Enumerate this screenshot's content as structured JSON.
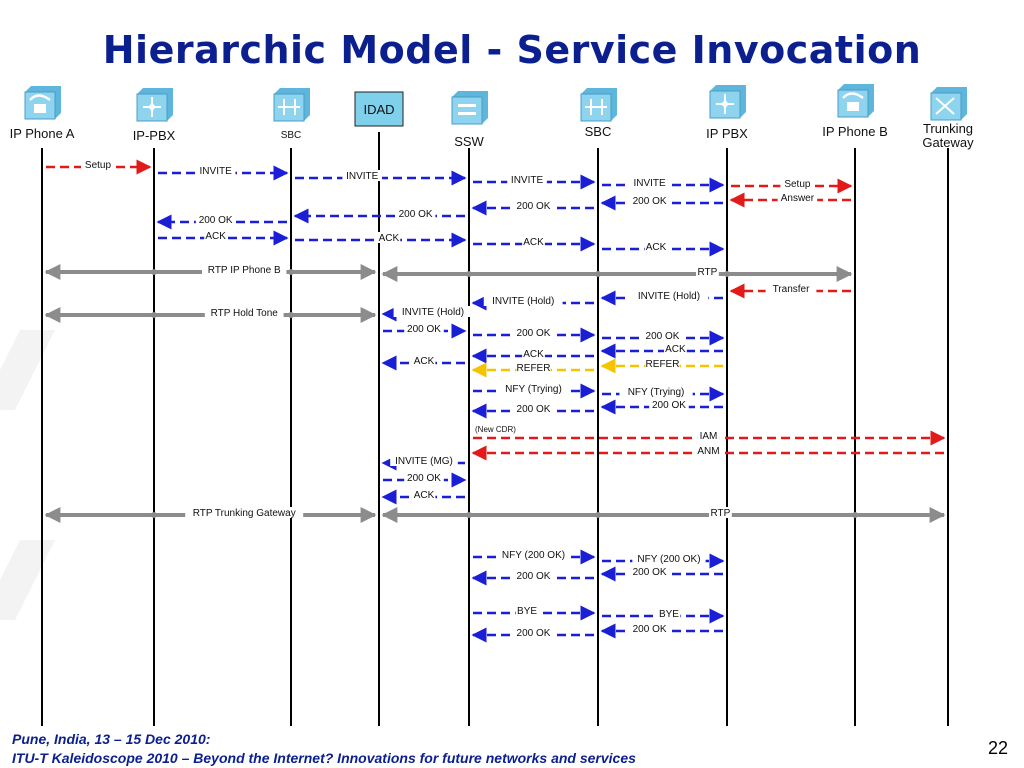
{
  "title": "Hierarchic Model - Service Invocation",
  "footer": {
    "line1": "Pune, India, 13 – 15 Dec 2010:",
    "line2": "ITU-T Kaleidoscope 2010 – Beyond the Internet? Innovations for future networks and services"
  },
  "page_number": "22",
  "colors": {
    "title": "#0b1f8f",
    "blue": "#1a1fd6",
    "red": "#e21a1a",
    "yellow": "#f5c400",
    "gray": "#8c8c8c",
    "idad": "#7fd0ea"
  },
  "entities": [
    {
      "name": "ip-phone-a",
      "label": "IP Phone A",
      "icon": "ip-phone-icon"
    },
    {
      "name": "ip-pbx-left",
      "label": "IP-PBX",
      "icon": "pbx-icon"
    },
    {
      "name": "sbc-left",
      "label": "SBC",
      "icon": "sbc-icon"
    },
    {
      "name": "idad",
      "label": "IDAD",
      "icon": "idad-box"
    },
    {
      "name": "ssw",
      "label": "SSW",
      "icon": "ssw-icon"
    },
    {
      "name": "sbc-right",
      "label": "SBC",
      "icon": "sbc-icon"
    },
    {
      "name": "ip-pbx-right",
      "label": "IP PBX",
      "icon": "pbx-icon"
    },
    {
      "name": "ip-phone-b",
      "label": "IP Phone B",
      "icon": "ip-phone-icon"
    },
    {
      "name": "trunking-gateway",
      "label": "Trunking Gateway",
      "icon": "gateway-icon"
    }
  ],
  "messages": [
    {
      "label": "Setup",
      "color": "red",
      "from": 0,
      "to": 1
    },
    {
      "label": "INVITE",
      "color": "blue",
      "from": 1,
      "to": 2
    },
    {
      "label": "INVITE",
      "color": "blue",
      "from": 2,
      "to": 4
    },
    {
      "label": "INVITE",
      "color": "blue",
      "from": 4,
      "to": 5
    },
    {
      "label": "INVITE",
      "color": "blue",
      "from": 5,
      "to": 6
    },
    {
      "label": "Setup",
      "color": "red",
      "from": 6,
      "to": 7
    },
    {
      "label": "Answer",
      "color": "red",
      "from": 7,
      "to": 6
    },
    {
      "label": "200 OK",
      "color": "blue",
      "from": 6,
      "to": 5
    },
    {
      "label": "200 OK",
      "color": "blue",
      "from": 5,
      "to": 4
    },
    {
      "label": "200 OK",
      "color": "blue",
      "from": 4,
      "to": 2
    },
    {
      "label": "200 OK",
      "color": "blue",
      "from": 2,
      "to": 1
    },
    {
      "label": "ACK",
      "color": "blue",
      "from": 1,
      "to": 2
    },
    {
      "label": "ACK",
      "color": "blue",
      "from": 2,
      "to": 4
    },
    {
      "label": "ACK",
      "color": "blue",
      "from": 4,
      "to": 5
    },
    {
      "label": "ACK",
      "color": "blue",
      "from": 5,
      "to": 6
    },
    {
      "label": "RTP IP Phone B",
      "color": "gray",
      "from": 0,
      "to": 3
    },
    {
      "label": "RTP",
      "color": "gray",
      "from": 3,
      "to": 7
    },
    {
      "label": "Transfer",
      "color": "red",
      "from": 7,
      "to": 6
    },
    {
      "label": "INVITE (Hold)",
      "color": "blue",
      "from": 6,
      "to": 5
    },
    {
      "label": "INVITE (Hold)",
      "color": "blue",
      "from": 5,
      "to": 4
    },
    {
      "label": "RTP Hold Tone",
      "color": "gray",
      "from": 0,
      "to": 3
    },
    {
      "label": "INVITE (Hold)",
      "color": "blue",
      "from": 4,
      "to": 3
    },
    {
      "label": "200 OK",
      "color": "blue",
      "from": 3,
      "to": 4
    },
    {
      "label": "200 OK",
      "color": "blue",
      "from": 4,
      "to": 5
    },
    {
      "label": "200 OK",
      "color": "blue",
      "from": 5,
      "to": 6
    },
    {
      "label": "ACK",
      "color": "blue",
      "from": 6,
      "to": 5
    },
    {
      "label": "ACK",
      "color": "blue",
      "from": 5,
      "to": 4
    },
    {
      "label": "ACK",
      "color": "blue",
      "from": 4,
      "to": 3
    },
    {
      "label": "REFER",
      "color": "yellow",
      "from": 6,
      "to": 5
    },
    {
      "label": "REFER",
      "color": "yellow",
      "from": 5,
      "to": 4
    },
    {
      "label": "NFY (Trying)",
      "color": "blue",
      "from": 4,
      "to": 5
    },
    {
      "label": "NFY (Trying)",
      "color": "blue",
      "from": 5,
      "to": 6
    },
    {
      "label": "200 OK",
      "color": "blue",
      "from": 6,
      "to": 5
    },
    {
      "label": "200 OK",
      "color": "blue",
      "from": 5,
      "to": 4
    },
    {
      "label": "(New CDR)",
      "color": "red",
      "from": 4,
      "to": 8
    },
    {
      "label": "IAM",
      "color": "red",
      "from": 4,
      "to": 8
    },
    {
      "label": "ANM",
      "color": "red",
      "from": 8,
      "to": 4
    },
    {
      "label": "INVITE (MG)",
      "color": "blue",
      "from": 4,
      "to": 3
    },
    {
      "label": "200 OK",
      "color": "blue",
      "from": 3,
      "to": 4
    },
    {
      "label": "ACK",
      "color": "blue",
      "from": 4,
      "to": 3
    },
    {
      "label": "RTP Trunking Gateway",
      "color": "gray",
      "from": 0,
      "to": 3
    },
    {
      "label": "RTP",
      "color": "gray",
      "from": 3,
      "to": 8
    },
    {
      "label": "NFY (200 OK)",
      "color": "blue",
      "from": 4,
      "to": 5
    },
    {
      "label": "NFY (200 OK)",
      "color": "blue",
      "from": 5,
      "to": 6
    },
    {
      "label": "200 OK",
      "color": "blue",
      "from": 6,
      "to": 5
    },
    {
      "label": "200 OK",
      "color": "blue",
      "from": 5,
      "to": 4
    },
    {
      "label": "BYE",
      "color": "blue",
      "from": 4,
      "to": 5
    },
    {
      "label": "BYE",
      "color": "blue",
      "from": 5,
      "to": 6
    },
    {
      "label": "200 OK",
      "color": "blue",
      "from": 6,
      "to": 5
    },
    {
      "label": "200 OK",
      "color": "blue",
      "from": 5,
      "to": 4
    }
  ]
}
